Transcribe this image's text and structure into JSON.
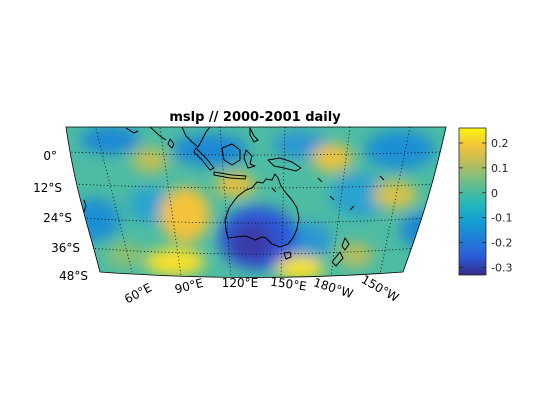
{
  "title": "mslp // 2000-2001 daily",
  "lat_labels": [
    "0°",
    "12°S",
    "24°S",
    "36°S",
    "48°S"
  ],
  "lon_labels": [
    "60°E",
    "90°E",
    "120°E",
    "150°E",
    "180°W",
    "150°W"
  ],
  "colorbar": {
    "ticks": [
      0.2,
      0.1,
      0,
      -0.1,
      -0.2,
      -0.3
    ],
    "tick_labels": [
      "0.2",
      "0.1",
      "0",
      "-0.1",
      "-0.2",
      "-0.3"
    ],
    "range": [
      -0.33,
      0.26
    ],
    "colormap": "parula"
  },
  "map": {
    "projection": "curved-lambert-like",
    "lat_range": [
      -48,
      6
    ],
    "lon_range": [
      40,
      230
    ],
    "grid": "dotted",
    "coastlines": true
  }
}
